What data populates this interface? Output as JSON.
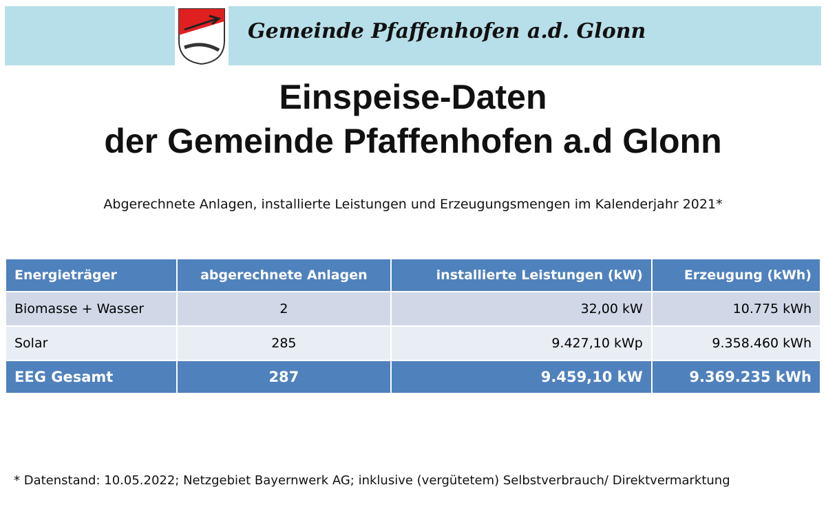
{
  "header": {
    "title": "Gemeinde Pfaffenhofen a.d. Glonn"
  },
  "heading": {
    "line1": "Einspeise-Daten",
    "line2": "der Gemeinde Pfaffenhofen a.d Glonn"
  },
  "subtitle": "Abgerechnete Anlagen, installierte Leistungen und Erzeugungsmengen im Kalenderjahr 2021*",
  "table": {
    "columns": [
      "Energieträger",
      "abgerechnete Anlagen",
      "installierte Leistungen (kW)",
      "Erzeugung (kWh)"
    ],
    "rows": [
      [
        "Biomasse + Wasser",
        "2",
        "32,00 kW",
        "10.775 kWh"
      ],
      [
        "Solar",
        "285",
        "9.427,10 kWp",
        "9.358.460 kWh"
      ]
    ],
    "total": [
      "EEG Gesamt",
      "287",
      "9.459,10 kW",
      "9.369.235 kWh"
    ]
  },
  "footnote": "* Datenstand: 10.05.2022; Netzgebiet Bayernwerk AG; inklusive (vergütetem) Selbstverbrauch/ Direktvermarktung"
}
